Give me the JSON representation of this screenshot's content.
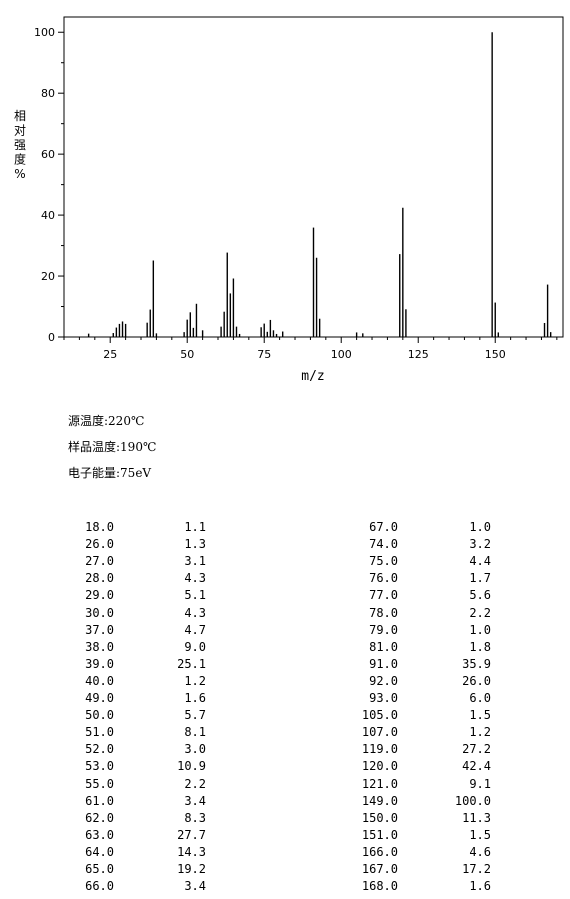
{
  "chart_data": {
    "type": "bar",
    "xlabel": "m/z",
    "ylabel": [
      "相",
      "对",
      "强",
      "度",
      "%"
    ],
    "xlim": [
      10,
      172
    ],
    "ylim": [
      0,
      105
    ],
    "x_ticks": [
      25,
      50,
      75,
      100,
      125,
      150
    ],
    "y_ticks": [
      0,
      20,
      40,
      60,
      80,
      100
    ],
    "grid": false,
    "peaks": [
      [
        18.0,
        1.1
      ],
      [
        26.0,
        1.3
      ],
      [
        27.0,
        3.1
      ],
      [
        28.0,
        4.3
      ],
      [
        29.0,
        5.1
      ],
      [
        30.0,
        4.3
      ],
      [
        37.0,
        4.7
      ],
      [
        38.0,
        9.0
      ],
      [
        39.0,
        25.1
      ],
      [
        40.0,
        1.2
      ],
      [
        49.0,
        1.6
      ],
      [
        50.0,
        5.7
      ],
      [
        51.0,
        8.1
      ],
      [
        52.0,
        3.0
      ],
      [
        53.0,
        10.9
      ],
      [
        55.0,
        2.2
      ],
      [
        61.0,
        3.4
      ],
      [
        62.0,
        8.3
      ],
      [
        63.0,
        27.7
      ],
      [
        64.0,
        14.3
      ],
      [
        65.0,
        19.2
      ],
      [
        66.0,
        3.4
      ],
      [
        67.0,
        1.0
      ],
      [
        74.0,
        3.2
      ],
      [
        75.0,
        4.4
      ],
      [
        76.0,
        1.7
      ],
      [
        77.0,
        5.6
      ],
      [
        78.0,
        2.2
      ],
      [
        79.0,
        1.0
      ],
      [
        81.0,
        1.8
      ],
      [
        91.0,
        35.9
      ],
      [
        92.0,
        26.0
      ],
      [
        93.0,
        6.0
      ],
      [
        105.0,
        1.5
      ],
      [
        107.0,
        1.2
      ],
      [
        119.0,
        27.2
      ],
      [
        120.0,
        42.4
      ],
      [
        121.0,
        9.1
      ],
      [
        149.0,
        100.0
      ],
      [
        150.0,
        11.3
      ],
      [
        151.0,
        1.5
      ],
      [
        166.0,
        4.6
      ],
      [
        167.0,
        17.2
      ],
      [
        168.0,
        1.6
      ]
    ]
  },
  "conditions": {
    "source_temp": "源温度:220℃",
    "sample_temp": "样品温度:190℃",
    "electron_energy": "电子能量:75eV"
  },
  "table": [
    [
      "18.0",
      "1.1",
      "67.0",
      "1.0"
    ],
    [
      "26.0",
      "1.3",
      "74.0",
      "3.2"
    ],
    [
      "27.0",
      "3.1",
      "75.0",
      "4.4"
    ],
    [
      "28.0",
      "4.3",
      "76.0",
      "1.7"
    ],
    [
      "29.0",
      "5.1",
      "77.0",
      "5.6"
    ],
    [
      "30.0",
      "4.3",
      "78.0",
      "2.2"
    ],
    [
      "37.0",
      "4.7",
      "79.0",
      "1.0"
    ],
    [
      "38.0",
      "9.0",
      "81.0",
      "1.8"
    ],
    [
      "39.0",
      "25.1",
      "91.0",
      "35.9"
    ],
    [
      "40.0",
      "1.2",
      "92.0",
      "26.0"
    ],
    [
      "49.0",
      "1.6",
      "93.0",
      "6.0"
    ],
    [
      "50.0",
      "5.7",
      "105.0",
      "1.5"
    ],
    [
      "51.0",
      "8.1",
      "107.0",
      "1.2"
    ],
    [
      "52.0",
      "3.0",
      "119.0",
      "27.2"
    ],
    [
      "53.0",
      "10.9",
      "120.0",
      "42.4"
    ],
    [
      "55.0",
      "2.2",
      "121.0",
      "9.1"
    ],
    [
      "61.0",
      "3.4",
      "149.0",
      "100.0"
    ],
    [
      "62.0",
      "8.3",
      "150.0",
      "11.3"
    ],
    [
      "63.0",
      "27.7",
      "151.0",
      "1.5"
    ],
    [
      "64.0",
      "14.3",
      "166.0",
      "4.6"
    ],
    [
      "65.0",
      "19.2",
      "167.0",
      "17.2"
    ],
    [
      "66.0",
      "3.4",
      "168.0",
      "1.6"
    ]
  ]
}
